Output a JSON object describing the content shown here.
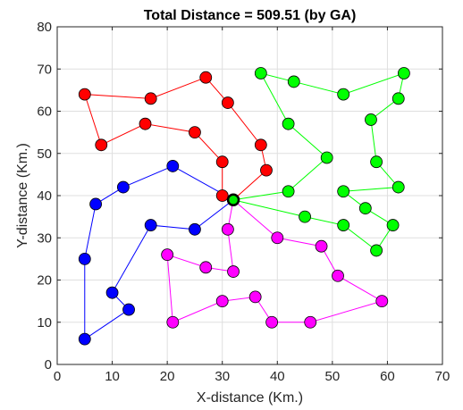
{
  "chart_data": {
    "type": "scatter",
    "title": "Total Distance = 509.51 (by GA)",
    "xlabel": "X-distance (Km.)",
    "ylabel": "Y-distance (Km.)",
    "xlim": [
      0,
      70
    ],
    "ylim": [
      0,
      80
    ],
    "xticks": [
      0,
      10,
      20,
      30,
      40,
      50,
      60,
      70
    ],
    "yticks": [
      0,
      10,
      20,
      30,
      40,
      50,
      60,
      70,
      80
    ],
    "grid": true,
    "depot": {
      "x": 32,
      "y": 39,
      "color": "#00ee00",
      "edge_color": "#000000"
    },
    "series": [
      {
        "color": "#ff0000",
        "route": [
          [
            32,
            39
          ],
          [
            30,
            40
          ],
          [
            30,
            48
          ],
          [
            25,
            55
          ],
          [
            16,
            57
          ],
          [
            8,
            52
          ],
          [
            5,
            64
          ],
          [
            17,
            63
          ],
          [
            27,
            68
          ],
          [
            31,
            62
          ],
          [
            37,
            52
          ],
          [
            38,
            46
          ],
          [
            32,
            39
          ]
        ]
      },
      {
        "color": "#00ff00",
        "route": [
          [
            32,
            39
          ],
          [
            42,
            41
          ],
          [
            49,
            49
          ],
          [
            42,
            57
          ],
          [
            37,
            69
          ],
          [
            43,
            67
          ],
          [
            52,
            64
          ],
          [
            63,
            69
          ],
          [
            62,
            63
          ],
          [
            57,
            58
          ],
          [
            58,
            48
          ],
          [
            62,
            42
          ],
          [
            52,
            41
          ],
          [
            56,
            37
          ],
          [
            61,
            33
          ],
          [
            58,
            27
          ],
          [
            52,
            33
          ],
          [
            45,
            35
          ],
          [
            32,
            39
          ]
        ]
      },
      {
        "color": "#0000ff",
        "route": [
          [
            32,
            39
          ],
          [
            21,
            47
          ],
          [
            12,
            42
          ],
          [
            7,
            38
          ],
          [
            5,
            25
          ],
          [
            5,
            6
          ],
          [
            13,
            13
          ],
          [
            10,
            17
          ],
          [
            17,
            33
          ],
          [
            25,
            32
          ],
          [
            32,
            39
          ]
        ]
      },
      {
        "color": "#ff00ff",
        "route": [
          [
            32,
            39
          ],
          [
            40,
            30
          ],
          [
            48,
            28
          ],
          [
            51,
            21
          ],
          [
            59,
            15
          ],
          [
            46,
            10
          ],
          [
            39,
            10
          ],
          [
            36,
            16
          ],
          [
            30,
            15
          ],
          [
            21,
            10
          ],
          [
            20,
            26
          ],
          [
            27,
            23
          ],
          [
            32,
            22
          ],
          [
            31,
            32
          ],
          [
            32,
            39
          ]
        ]
      }
    ]
  }
}
